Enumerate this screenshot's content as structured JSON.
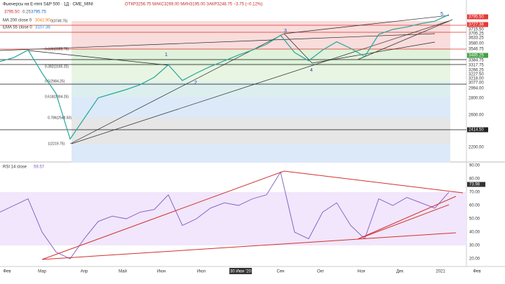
{
  "header": {
    "symbol": "Фьючерсы на E-mini S&P 500 · 1Д · CME_MINI",
    "ohlc": "ОТКР3256.75 МАКС3269.00 МИН3195.00 ЗАКР3248.75 −3.75 (−0.12%)",
    "bid": "3795.50",
    "spread": "0.25",
    "ask": "3795.75",
    "ma": "MA 200 close 0",
    "ma_value": "3042.90",
    "ema": "EMA 55 close 0",
    "ema_value": "3107.36"
  },
  "fib_levels": [
    "0(3749.75)",
    "0.236(3388.75)",
    "0.382(3165.25)",
    "0.5(2984.25)",
    "0.618(2804.25)",
    "0.786(2548.50)",
    "1(2219.75)"
  ],
  "waves": [
    "1",
    "2",
    "3",
    "4",
    "5"
  ],
  "price_axis": [
    "3795.50",
    "3727.38",
    "3715.50",
    "3705.25",
    "3633.25",
    "3580.00",
    "3546.75",
    "3485.25",
    "3384.75",
    "3317.75",
    "3266.25",
    "3227.50",
    "3218.00",
    "3077.00",
    "2994.00",
    "2800.00",
    "2600.00",
    "2414.50",
    "2200.00"
  ],
  "price": [
    3240,
    3290,
    3380,
    3100,
    2850,
    2300,
    2550,
    2800,
    2850,
    2900,
    2960,
    3050,
    3200,
    3010,
    3100,
    3180,
    3250,
    3320,
    3380,
    3450,
    3560,
    3350,
    3250,
    3380,
    3480,
    3400,
    3300,
    3570,
    3630,
    3660,
    3700,
    3730,
    3810
  ],
  "rsi_panel": {
    "title": "RSI 14 close",
    "value": "59.57",
    "axis": [
      "90.00",
      "80.00",
      "73.98",
      "70.00",
      "60.00",
      "50.00",
      "40.00",
      "30.00",
      "20.00"
    ],
    "values": [
      55,
      60,
      65,
      40,
      25,
      20,
      35,
      48,
      52,
      50,
      55,
      57,
      68,
      45,
      50,
      58,
      62,
      60,
      65,
      68,
      85,
      40,
      35,
      55,
      62,
      45,
      35,
      65,
      60,
      66,
      62,
      58,
      70
    ]
  },
  "time_axis": [
    "Фев",
    "Мар",
    "Апр",
    "Май",
    "Июн",
    "Июл",
    "30 Июн '20",
    "Сен",
    "Окт",
    "Ноя",
    "Дек",
    "2021",
    "Фев"
  ]
}
